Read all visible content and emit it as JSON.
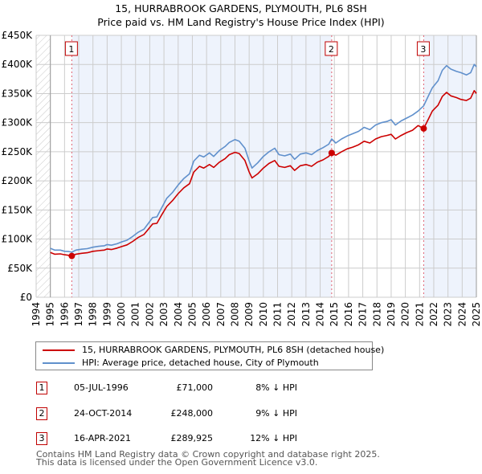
{
  "title": {
    "line1": "15, HURRABROOK GARDENS, PLYMOUTH, PL6 8SH",
    "line2": "Price paid vs. HM Land Registry's House Price Index (HPI)"
  },
  "colors": {
    "property": "#cc0000",
    "hpi": "#6090cc",
    "shade": "#eef3fc",
    "marker_border": "#c00000",
    "vline": "#e06070",
    "grid": "#cccccc"
  },
  "chart_data": {
    "type": "line",
    "title": "Price paid vs. HM Land Registry's House Price Index (HPI)",
    "xlabel": "",
    "ylabel": "",
    "xlim": [
      1994,
      2025
    ],
    "ylim": [
      0,
      450000
    ],
    "grid": true,
    "x_ticks": [
      "1994",
      "1995",
      "1996",
      "1997",
      "1998",
      "1999",
      "2000",
      "2001",
      "2002",
      "2003",
      "2004",
      "2005",
      "2006",
      "2007",
      "2008",
      "2009",
      "2010",
      "2011",
      "2012",
      "2013",
      "2014",
      "2015",
      "2016",
      "2017",
      "2018",
      "2019",
      "2020",
      "2021",
      "2022",
      "2023",
      "2024",
      "2025"
    ],
    "y_ticks": [
      {
        "value": 0,
        "label": "£0"
      },
      {
        "value": 50000,
        "label": "£50K"
      },
      {
        "value": 100000,
        "label": "£100K"
      },
      {
        "value": 150000,
        "label": "£150K"
      },
      {
        "value": 200000,
        "label": "£200K"
      },
      {
        "value": 250000,
        "label": "£250K"
      },
      {
        "value": 300000,
        "label": "£300K"
      },
      {
        "value": 350000,
        "label": "£350K"
      },
      {
        "value": 400000,
        "label": "£400K"
      },
      {
        "value": 450000,
        "label": "£450K"
      }
    ],
    "hatched_range": [
      1994,
      1995
    ],
    "shaded_ranges": [
      [
        1996.51,
        2014.81
      ],
      [
        2021.29,
        2025
      ]
    ],
    "legend_position": "below",
    "series": [
      {
        "name": "15, HURRABROOK GARDENS, PLYMOUTH, PL6 8SH (detached house)",
        "color": "#cc0000",
        "points": [
          [
            1995.0,
            77000
          ],
          [
            1995.3,
            74000
          ],
          [
            1995.7,
            74500
          ],
          [
            1996.0,
            73000
          ],
          [
            1996.3,
            72000
          ],
          [
            1996.51,
            71000
          ],
          [
            1996.8,
            74000
          ],
          [
            1997.2,
            75500
          ],
          [
            1997.6,
            76500
          ],
          [
            1998.0,
            79000
          ],
          [
            1998.4,
            80000
          ],
          [
            1998.8,
            81000
          ],
          [
            1999.0,
            83000
          ],
          [
            1999.3,
            82000
          ],
          [
            1999.7,
            84500
          ],
          [
            2000.0,
            87000
          ],
          [
            2000.4,
            90000
          ],
          [
            2000.8,
            96000
          ],
          [
            2001.2,
            103000
          ],
          [
            2001.6,
            108000
          ],
          [
            2001.9,
            117000
          ],
          [
            2002.2,
            126000
          ],
          [
            2002.5,
            127000
          ],
          [
            2002.8,
            140000
          ],
          [
            2003.2,
            156000
          ],
          [
            2003.6,
            166000
          ],
          [
            2004.0,
            178000
          ],
          [
            2004.4,
            188000
          ],
          [
            2004.8,
            195000
          ],
          [
            2005.1,
            215000
          ],
          [
            2005.5,
            225000
          ],
          [
            2005.8,
            222000
          ],
          [
            2006.2,
            228000
          ],
          [
            2006.5,
            223000
          ],
          [
            2006.9,
            232000
          ],
          [
            2007.3,
            238000
          ],
          [
            2007.6,
            245000
          ],
          [
            2008.0,
            249000
          ],
          [
            2008.3,
            247000
          ],
          [
            2008.7,
            235000
          ],
          [
            2009.0,
            215000
          ],
          [
            2009.2,
            205000
          ],
          [
            2009.6,
            212000
          ],
          [
            2010.0,
            222000
          ],
          [
            2010.4,
            230000
          ],
          [
            2010.8,
            235000
          ],
          [
            2011.1,
            225000
          ],
          [
            2011.5,
            223000
          ],
          [
            2011.9,
            226000
          ],
          [
            2012.2,
            218000
          ],
          [
            2012.6,
            226000
          ],
          [
            2013.0,
            228000
          ],
          [
            2013.4,
            225000
          ],
          [
            2013.8,
            232000
          ],
          [
            2014.2,
            236000
          ],
          [
            2014.6,
            242000
          ],
          [
            2014.81,
            248000
          ],
          [
            2015.1,
            244000
          ],
          [
            2015.5,
            250000
          ],
          [
            2015.9,
            255000
          ],
          [
            2016.3,
            258000
          ],
          [
            2016.7,
            262000
          ],
          [
            2017.1,
            268000
          ],
          [
            2017.5,
            265000
          ],
          [
            2017.9,
            272000
          ],
          [
            2018.3,
            276000
          ],
          [
            2018.7,
            278000
          ],
          [
            2019.0,
            280000
          ],
          [
            2019.3,
            272000
          ],
          [
            2019.7,
            278000
          ],
          [
            2020.1,
            283000
          ],
          [
            2020.5,
            287000
          ],
          [
            2020.9,
            295000
          ],
          [
            2021.29,
            289925
          ],
          [
            2021.6,
            305000
          ],
          [
            2021.9,
            320000
          ],
          [
            2022.3,
            330000
          ],
          [
            2022.6,
            345000
          ],
          [
            2022.9,
            352000
          ],
          [
            2023.2,
            346000
          ],
          [
            2023.6,
            343000
          ],
          [
            2023.9,
            340000
          ],
          [
            2024.3,
            338000
          ],
          [
            2024.6,
            342000
          ],
          [
            2024.85,
            355000
          ],
          [
            2025.0,
            350000
          ]
        ]
      },
      {
        "name": "HPI: Average price, detached house, City of Plymouth",
        "color": "#6090cc",
        "points": [
          [
            1995.0,
            84000
          ],
          [
            1995.3,
            81000
          ],
          [
            1995.7,
            81000
          ],
          [
            1996.0,
            79000
          ],
          [
            1996.3,
            78500
          ],
          [
            1996.51,
            77500
          ],
          [
            1996.8,
            81000
          ],
          [
            1997.2,
            82500
          ],
          [
            1997.6,
            83500
          ],
          [
            1998.0,
            86000
          ],
          [
            1998.4,
            87500
          ],
          [
            1998.8,
            88500
          ],
          [
            1999.0,
            90500
          ],
          [
            1999.3,
            89500
          ],
          [
            1999.7,
            92000
          ],
          [
            2000.0,
            95000
          ],
          [
            2000.4,
            98000
          ],
          [
            2000.8,
            104500
          ],
          [
            2001.2,
            112000
          ],
          [
            2001.6,
            117000
          ],
          [
            2001.9,
            127000
          ],
          [
            2002.2,
            137000
          ],
          [
            2002.5,
            138000
          ],
          [
            2002.8,
            152000
          ],
          [
            2003.2,
            170000
          ],
          [
            2003.6,
            180000
          ],
          [
            2004.0,
            193000
          ],
          [
            2004.4,
            204000
          ],
          [
            2004.8,
            212000
          ],
          [
            2005.1,
            234000
          ],
          [
            2005.5,
            244000
          ],
          [
            2005.8,
            241000
          ],
          [
            2006.2,
            248000
          ],
          [
            2006.5,
            242000
          ],
          [
            2006.9,
            252000
          ],
          [
            2007.3,
            259000
          ],
          [
            2007.6,
            266000
          ],
          [
            2008.0,
            271000
          ],
          [
            2008.3,
            268000
          ],
          [
            2008.7,
            256000
          ],
          [
            2009.0,
            234000
          ],
          [
            2009.2,
            222000
          ],
          [
            2009.6,
            231000
          ],
          [
            2010.0,
            242000
          ],
          [
            2010.4,
            250000
          ],
          [
            2010.8,
            256000
          ],
          [
            2011.1,
            245000
          ],
          [
            2011.5,
            243000
          ],
          [
            2011.9,
            246000
          ],
          [
            2012.2,
            237000
          ],
          [
            2012.6,
            246000
          ],
          [
            2013.0,
            248000
          ],
          [
            2013.4,
            245000
          ],
          [
            2013.8,
            252000
          ],
          [
            2014.2,
            257000
          ],
          [
            2014.6,
            263000
          ],
          [
            2014.81,
            272000
          ],
          [
            2015.1,
            265000
          ],
          [
            2015.5,
            272000
          ],
          [
            2015.9,
            277000
          ],
          [
            2016.3,
            281000
          ],
          [
            2016.7,
            285000
          ],
          [
            2017.1,
            292000
          ],
          [
            2017.5,
            288000
          ],
          [
            2017.9,
            296000
          ],
          [
            2018.3,
            300000
          ],
          [
            2018.7,
            302000
          ],
          [
            2019.0,
            305000
          ],
          [
            2019.3,
            296000
          ],
          [
            2019.7,
            303000
          ],
          [
            2020.1,
            308000
          ],
          [
            2020.5,
            313000
          ],
          [
            2020.9,
            320000
          ],
          [
            2021.29,
            329000
          ],
          [
            2021.6,
            345000
          ],
          [
            2021.9,
            360000
          ],
          [
            2022.3,
            372000
          ],
          [
            2022.6,
            390000
          ],
          [
            2022.9,
            398000
          ],
          [
            2023.2,
            392000
          ],
          [
            2023.6,
            388000
          ],
          [
            2023.9,
            386000
          ],
          [
            2024.3,
            382000
          ],
          [
            2024.6,
            386000
          ],
          [
            2024.85,
            400000
          ],
          [
            2025.0,
            396000
          ]
        ]
      }
    ],
    "annotations": [
      {
        "label": "1",
        "x": 1996.51,
        "y": 71000
      },
      {
        "label": "2",
        "x": 2014.81,
        "y": 248000
      },
      {
        "label": "3",
        "x": 2021.29,
        "y": 289925
      }
    ]
  },
  "legend": {
    "items": [
      {
        "label": "15, HURRABROOK GARDENS, PLYMOUTH, PL6 8SH (detached house)",
        "color": "#cc0000"
      },
      {
        "label": "HPI: Average price, detached house, City of Plymouth",
        "color": "#6090cc"
      }
    ]
  },
  "transactions": [
    {
      "num": "1",
      "date": "05-JUL-1996",
      "price": "£71,000",
      "hpi": "8% ↓ HPI"
    },
    {
      "num": "2",
      "date": "24-OCT-2014",
      "price": "£248,000",
      "hpi": "9% ↓ HPI"
    },
    {
      "num": "3",
      "date": "16-APR-2021",
      "price": "£289,925",
      "hpi": "12% ↓ HPI"
    }
  ],
  "footer": {
    "line1": "Contains HM Land Registry data © Crown copyright and database right 2025.",
    "line2": "This data is licensed under the Open Government Licence v3.0."
  }
}
